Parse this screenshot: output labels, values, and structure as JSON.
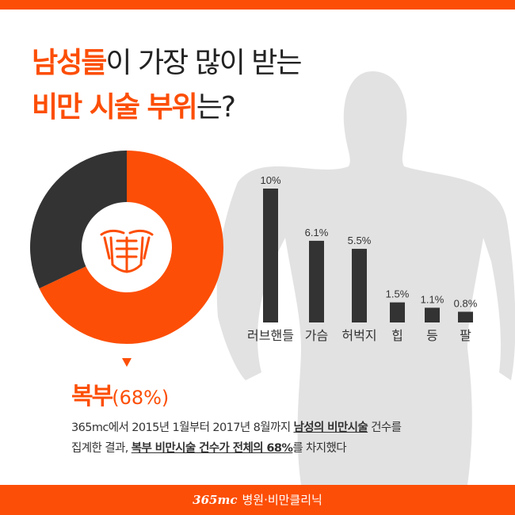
{
  "title": {
    "line1_highlight": "남성들",
    "line1_rest": "이 가장 많이 받는",
    "line2_highlight": "비만 시술 부위",
    "line2_rest": "는?"
  },
  "colors": {
    "accent": "#fc4e06",
    "dark": "#333333",
    "silhouette": "#e2e2e2"
  },
  "chart_data": [
    {
      "type": "pie",
      "style": "donut",
      "slices": [
        {
          "label": "복부",
          "value": 68,
          "color": "#fc4e06"
        },
        {
          "label": "",
          "value": 32,
          "color": "#333333"
        }
      ],
      "center_icon": "abs-icon"
    },
    {
      "type": "bar",
      "categories": [
        "러브핸들",
        "가슴",
        "허벅지",
        "힙",
        "등",
        "팔"
      ],
      "values": [
        10,
        6.1,
        5.5,
        1.5,
        1.1,
        0.8
      ],
      "data_labels": [
        "10%",
        "6.1%",
        "5.5%",
        "1.5%",
        "1.1%",
        "0.8%"
      ],
      "ylim": [
        0,
        10
      ],
      "grid": false
    }
  ],
  "result": {
    "label": "복부",
    "pct": "(68%)"
  },
  "description": {
    "l1a": "365mc에서 2015년 1월부터 2017년 8월까지 ",
    "l1b": "남성의 비만시술",
    "l1c": " 건수를",
    "l2a": "집계한 결과, ",
    "l2b": "복부 비만시술 건수가 전체의 68%",
    "l2c": "를 차지했다"
  },
  "footer": {
    "logo": "365mc",
    "name": "병원·비만클리닉"
  }
}
